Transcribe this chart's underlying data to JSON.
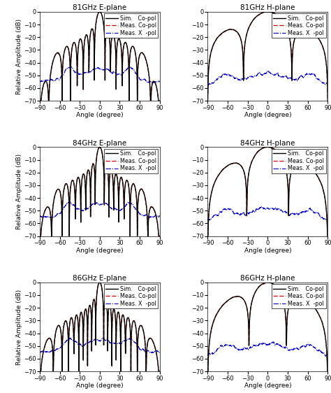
{
  "titles": [
    [
      "81GHz E-plane",
      "81GHz H-plane"
    ],
    [
      "84GHz E-plane",
      "84GHz H-plane"
    ],
    [
      "86GHz E-plane",
      "86GHz H-plane"
    ]
  ],
  "xlabel": "Angle (degree)",
  "ylabel": "Relative Amplitude (dB)",
  "ylim": [
    -70,
    0
  ],
  "xlim": [
    -90,
    90
  ],
  "xticks": [
    -90,
    -60,
    -30,
    0,
    30,
    60,
    90
  ],
  "yticks": [
    0,
    -10,
    -20,
    -30,
    -40,
    -50,
    -60,
    -70
  ],
  "legend_labels": [
    "Sim.   Co-pol",
    "Meas. Co-pol",
    "Meas. X  -pol"
  ],
  "line_colors": [
    "#000000",
    "#cc0000",
    "#0000cc"
  ],
  "figsize": [
    4.74,
    5.62
  ],
  "dpi": 100,
  "title_fontsize": 7.5,
  "label_fontsize": 6.5,
  "tick_fontsize": 6,
  "legend_fontsize": 5.8
}
